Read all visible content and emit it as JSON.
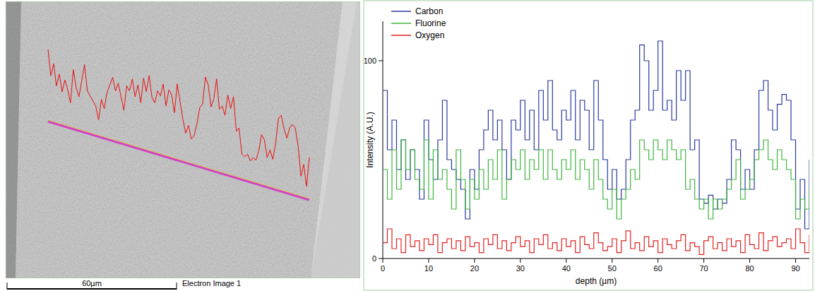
{
  "chart_data": {
    "type": "line",
    "line_style": "steps",
    "x_label": "depth (µm)",
    "y_label": "Intensity (A.U.)",
    "x": [
      0,
      1,
      2,
      3,
      4,
      5,
      6,
      7,
      8,
      9,
      10,
      11,
      12,
      13,
      14,
      15,
      16,
      17,
      18,
      19,
      20,
      21,
      22,
      23,
      24,
      25,
      26,
      27,
      28,
      29,
      30,
      31,
      32,
      33,
      34,
      35,
      36,
      37,
      38,
      39,
      40,
      41,
      42,
      43,
      44,
      45,
      46,
      47,
      48,
      49,
      50,
      51,
      52,
      53,
      54,
      55,
      56,
      57,
      58,
      59,
      60,
      61,
      62,
      63,
      64,
      65,
      66,
      67,
      68,
      69,
      70,
      71,
      72,
      73,
      74,
      75,
      76,
      77,
      78,
      79,
      80,
      81,
      82,
      83,
      84,
      85,
      86,
      87,
      88,
      89,
      90,
      91,
      92,
      93
    ],
    "xlim": [
      0,
      93
    ],
    "xticks": [
      0,
      10,
      20,
      30,
      40,
      50,
      60,
      70,
      80,
      90
    ],
    "ylim": [
      0,
      120
    ],
    "yticks": [
      0,
      100
    ],
    "grid": false,
    "legend": "upper left",
    "series": [
      {
        "name": "Carbon",
        "color": "#2b3a9e",
        "values": [
          85,
          55,
          70,
          45,
          60,
          40,
          55,
          45,
          30,
          70,
          50,
          40,
          60,
          80,
          50,
          45,
          40,
          35,
          20,
          45,
          35,
          55,
          65,
          75,
          60,
          70,
          55,
          40,
          70,
          65,
          80,
          60,
          75,
          55,
          85,
          70,
          90,
          65,
          60,
          75,
          70,
          85,
          60,
          80,
          75,
          55,
          90,
          70,
          50,
          35,
          45,
          30,
          35,
          50,
          70,
          75,
          108,
          100,
          75,
          85,
          110,
          75,
          80,
          70,
          95,
          80,
          95,
          55,
          60,
          30,
          28,
          32,
          25,
          30,
          28,
          40,
          60,
          55,
          35,
          45,
          35,
          55,
          85,
          90,
          75,
          65,
          78,
          83,
          80,
          60,
          25,
          40,
          15,
          50
        ]
      },
      {
        "name": "Fluorine",
        "color": "#3cb53c",
        "values": [
          45,
          30,
          55,
          35,
          60,
          45,
          55,
          40,
          35,
          60,
          30,
          55,
          40,
          45,
          35,
          25,
          55,
          40,
          25,
          40,
          30,
          45,
          35,
          50,
          40,
          55,
          30,
          40,
          50,
          45,
          55,
          40,
          50,
          45,
          55,
          40,
          55,
          45,
          40,
          50,
          45,
          55,
          40,
          50,
          45,
          35,
          50,
          40,
          30,
          25,
          35,
          20,
          30,
          35,
          45,
          40,
          60,
          55,
          50,
          60,
          55,
          50,
          60,
          55,
          50,
          55,
          35,
          40,
          30,
          25,
          30,
          20,
          30,
          25,
          30,
          35,
          40,
          50,
          30,
          35,
          40,
          50,
          55,
          60,
          50,
          45,
          55,
          50,
          45,
          40,
          20,
          30,
          25,
          35
        ]
      },
      {
        "name": "Oxygen",
        "color": "#e02020",
        "values": [
          8,
          15,
          5,
          10,
          3,
          12,
          6,
          9,
          4,
          10,
          7,
          12,
          3,
          8,
          10,
          5,
          9,
          4,
          11,
          6,
          8,
          3,
          10,
          7,
          12,
          5,
          9,
          4,
          8,
          11,
          6,
          9,
          3,
          10,
          7,
          12,
          5,
          8,
          4,
          10,
          6,
          9,
          3,
          11,
          7,
          5,
          13,
          8,
          4,
          6,
          10,
          3,
          9,
          14,
          5,
          8,
          4,
          11,
          6,
          9,
          3,
          10,
          7,
          5,
          9,
          12,
          4,
          8,
          6,
          2,
          9,
          11,
          5,
          8,
          4,
          10,
          6,
          9,
          3,
          12,
          7,
          5,
          13,
          4,
          9,
          11,
          6,
          8,
          10,
          5,
          15,
          8,
          3,
          12
        ]
      }
    ]
  },
  "image": {
    "scale_bar": "60µm",
    "caption": "Electron Image 1"
  }
}
